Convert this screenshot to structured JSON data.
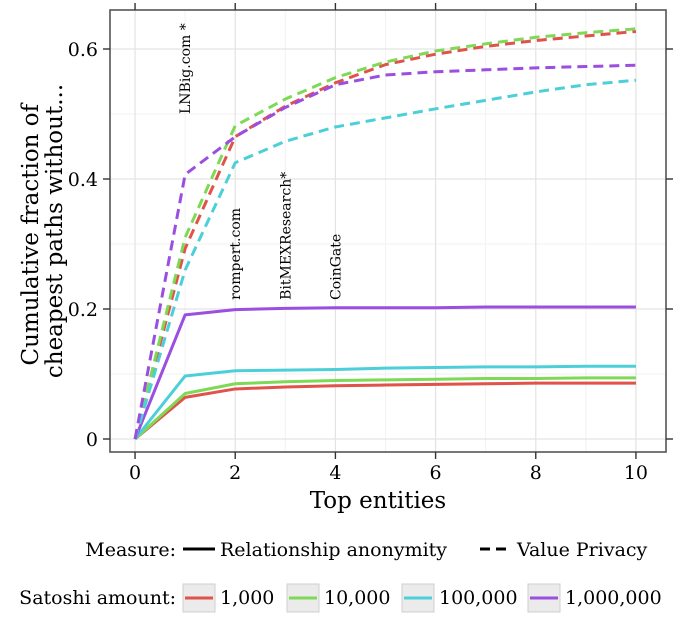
{
  "chart_data": {
    "type": "line",
    "title": "",
    "xlabel": "Top entities",
    "ylabel_lines": [
      "Cumulative fraction of",
      "cheapest paths without..."
    ],
    "xlim": [
      -0.5,
      10.6
    ],
    "ylim": [
      -0.02,
      0.66
    ],
    "xticks": [
      0,
      2,
      4,
      6,
      8,
      10
    ],
    "xtick_labels": [
      "0",
      "2",
      "4",
      "6",
      "8",
      "10"
    ],
    "yticks": [
      0,
      0.2,
      0.4,
      0.6
    ],
    "ytick_labels": [
      "0",
      "0.2",
      "0.4",
      "0.6"
    ],
    "grid": true,
    "x": [
      0,
      1,
      2,
      3,
      4,
      5,
      6,
      7,
      8,
      9,
      10
    ],
    "colors": {
      "1,000": "#e0524a",
      "10,000": "#7ed957",
      "100,000": "#4ccfd8",
      "1,000,000": "#9a4fe0"
    },
    "series": [
      {
        "measure": "Relationship anonymity",
        "amount": "1,000",
        "values": [
          0,
          0.064,
          0.077,
          0.08,
          0.082,
          0.083,
          0.084,
          0.085,
          0.086,
          0.086,
          0.086
        ]
      },
      {
        "measure": "Relationship anonymity",
        "amount": "10,000",
        "values": [
          0,
          0.07,
          0.085,
          0.088,
          0.09,
          0.091,
          0.092,
          0.093,
          0.093,
          0.094,
          0.094
        ]
      },
      {
        "measure": "Relationship anonymity",
        "amount": "100,000",
        "values": [
          0,
          0.097,
          0.105,
          0.106,
          0.107,
          0.109,
          0.11,
          0.111,
          0.111,
          0.112,
          0.112
        ]
      },
      {
        "measure": "Relationship anonymity",
        "amount": "1,000,000",
        "values": [
          0,
          0.191,
          0.199,
          0.201,
          0.202,
          0.202,
          0.202,
          0.203,
          0.203,
          0.203,
          0.203
        ]
      },
      {
        "measure": "Value Privacy",
        "amount": "1,000",
        "values": [
          0,
          0.293,
          0.465,
          0.512,
          0.548,
          0.576,
          0.592,
          0.604,
          0.613,
          0.62,
          0.627
        ]
      },
      {
        "measure": "Value Privacy",
        "amount": "10,000",
        "values": [
          0,
          0.31,
          0.482,
          0.523,
          0.556,
          0.58,
          0.597,
          0.608,
          0.618,
          0.625,
          0.631
        ]
      },
      {
        "measure": "Value Privacy",
        "amount": "100,000",
        "values": [
          0,
          0.26,
          0.425,
          0.458,
          0.48,
          0.494,
          0.508,
          0.521,
          0.534,
          0.545,
          0.552
        ]
      },
      {
        "measure": "Value Privacy",
        "amount": "1,000,000",
        "values": [
          0,
          0.407,
          0.465,
          0.51,
          0.545,
          0.56,
          0.565,
          0.568,
          0.571,
          0.573,
          0.575
        ]
      }
    ],
    "annotations": [
      {
        "text": "LNBig.com *",
        "x": 1,
        "y": 0.5
      },
      {
        "text": "rompert.com",
        "x": 2,
        "y": 0.214
      },
      {
        "text": "BitMEXResearch*",
        "x": 3,
        "y": 0.214
      },
      {
        "text": "CoinGate",
        "x": 4,
        "y": 0.214
      }
    ],
    "legend": {
      "placement": "bottom",
      "measure_title": "Measure:",
      "measure_items": [
        {
          "label": "Relationship anonymity",
          "style": "solid"
        },
        {
          "label": "Value Privacy",
          "style": "dashed"
        }
      ],
      "amount_title": "Satoshi amount:",
      "amount_items": [
        "1,000",
        "10,000",
        "100,000",
        "1,000,000"
      ]
    }
  }
}
